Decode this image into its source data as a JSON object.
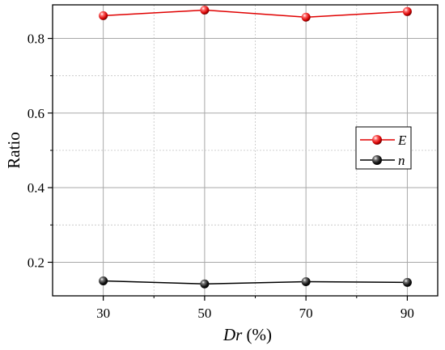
{
  "chart_data": {
    "type": "line",
    "x": [
      30,
      50,
      70,
      90
    ],
    "series": [
      {
        "name": "E",
        "values": [
          0.861,
          0.876,
          0.857,
          0.872
        ],
        "color": "#e00000",
        "marker": "sphere"
      },
      {
        "name": "n",
        "values": [
          0.15,
          0.142,
          0.148,
          0.146
        ],
        "color": "#000000",
        "marker": "sphere"
      }
    ],
    "xlabel_italic": "Dr",
    "xlabel_rest": " (%)",
    "ylabel": "Ratio",
    "xlim": [
      20,
      96
    ],
    "ylim": [
      0.11,
      0.89
    ],
    "xticks": [
      30,
      50,
      70,
      90
    ],
    "xtick_labels": [
      "30",
      "50",
      "70",
      "90"
    ],
    "yticks": [
      0.2,
      0.4,
      0.6,
      0.8
    ],
    "ytick_labels": [
      "0.2",
      "0.4",
      "0.6",
      "0.8"
    ],
    "minor_xticks": [
      40,
      60,
      80
    ],
    "minor_yticks": [
      0.3,
      0.5,
      0.7
    ],
    "grid": true,
    "legend_position": "right"
  }
}
